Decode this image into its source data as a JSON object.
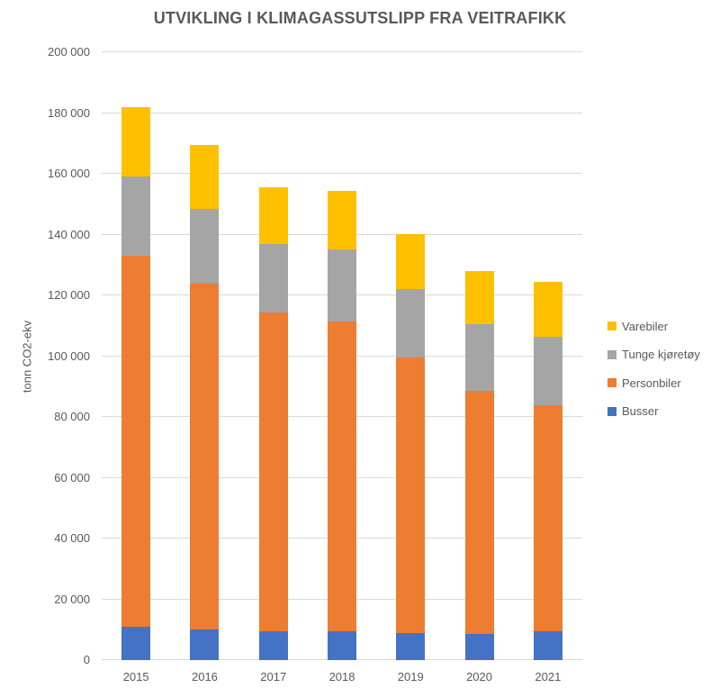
{
  "chart_data": {
    "type": "bar",
    "stacked": true,
    "title": "UTVIKLING I KLIMAGASSUTSLIPP FRA VEITRAFIKK",
    "xlabel": "",
    "ylabel": "tonn CO2-ekv",
    "categories": [
      "2015",
      "2016",
      "2017",
      "2018",
      "2019",
      "2020",
      "2021"
    ],
    "series": [
      {
        "name": "Busser",
        "color": "#4472C4",
        "values": [
          11000,
          10000,
          9500,
          9500,
          9000,
          8500,
          9500
        ]
      },
      {
        "name": "Personbiler",
        "color": "#ED7D31",
        "values": [
          122000,
          114000,
          105000,
          102000,
          90500,
          80000,
          74500
        ]
      },
      {
        "name": "Tunge kjøretøy",
        "color": "#A5A5A5",
        "values": [
          26000,
          24500,
          22500,
          23500,
          22500,
          22000,
          22500
        ]
      },
      {
        "name": "Varebiler",
        "color": "#FFC000",
        "values": [
          23000,
          21000,
          18500,
          19500,
          18000,
          17500,
          18000
        ]
      }
    ],
    "totals": [
      182000,
      169500,
      155500,
      154500,
      140000,
      128000,
      124500
    ],
    "ylim": [
      0,
      200000
    ],
    "ytick_step": 20000,
    "ytick_labels": [
      "0",
      "20 000",
      "40 000",
      "60 000",
      "80 000",
      "100 000",
      "120 000",
      "140 000",
      "160 000",
      "180 000",
      "200 000"
    ],
    "grid": true,
    "legend_position": "right",
    "legend_order": [
      "Varebiler",
      "Tunge kjøretøy",
      "Personbiler",
      "Busser"
    ]
  },
  "colors": {
    "text": "#595959",
    "gridline": "#D9D9D9",
    "background": "#FFFFFF"
  }
}
